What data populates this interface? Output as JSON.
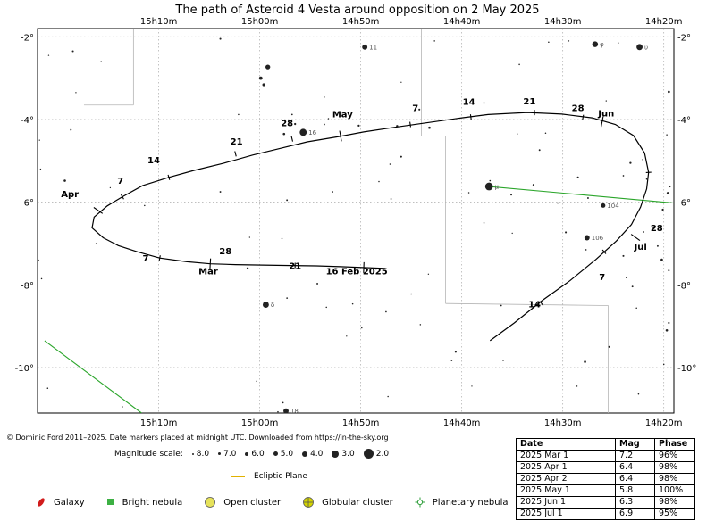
{
  "chart_data": {
    "type": "scatter",
    "title": "The path of Asteroid 4 Vesta around opposition on 2 May 2025",
    "x_axis": {
      "ticks": [
        "15h10m",
        "15h00m",
        "14h50m",
        "14h40m",
        "14h30m",
        "14h20m"
      ],
      "tick_values_min": [
        910,
        900,
        890,
        880,
        870,
        860
      ],
      "range_min": [
        922,
        859
      ]
    },
    "y_axis": {
      "ticks": [
        "-2°",
        "-4°",
        "-6°",
        "-8°",
        "-10°"
      ],
      "tick_values": [
        -2,
        -4,
        -6,
        -8,
        -10
      ],
      "range": [
        -11.1,
        -1.8
      ]
    },
    "grid": true,
    "path": [
      [
        887.6,
        -7.6
      ],
      [
        889.8,
        -7.58
      ],
      [
        892.0,
        -7.56
      ],
      [
        894.4,
        -7.54
      ],
      [
        896.9,
        -7.53
      ],
      [
        899.7,
        -7.52
      ],
      [
        902.4,
        -7.51
      ],
      [
        904.9,
        -7.49
      ],
      [
        907.2,
        -7.44
      ],
      [
        909.9,
        -7.35
      ],
      [
        912.1,
        -7.2
      ],
      [
        914.0,
        -7.05
      ],
      [
        915.5,
        -6.86
      ],
      [
        916.6,
        -6.62
      ],
      [
        916.4,
        -6.36
      ],
      [
        915.1,
        -6.09
      ],
      [
        913.6,
        -5.87
      ],
      [
        911.6,
        -5.6
      ],
      [
        909.0,
        -5.4
      ],
      [
        906.5,
        -5.23
      ],
      [
        903.6,
        -5.06
      ],
      [
        900.7,
        -4.86
      ],
      [
        898.0,
        -4.7
      ],
      [
        895.3,
        -4.54
      ],
      [
        892.3,
        -4.42
      ],
      [
        889.7,
        -4.3
      ],
      [
        886.7,
        -4.19
      ],
      [
        883.5,
        -4.08
      ],
      [
        880.0,
        -3.96
      ],
      [
        877.4,
        -3.88
      ],
      [
        873.5,
        -3.83
      ],
      [
        870.1,
        -3.87
      ],
      [
        867.1,
        -3.96
      ],
      [
        864.8,
        -4.12
      ],
      [
        863.0,
        -4.39
      ],
      [
        861.9,
        -4.81
      ],
      [
        861.5,
        -5.28
      ],
      [
        861.7,
        -5.68
      ],
      [
        862.3,
        -6.12
      ],
      [
        863.2,
        -6.54
      ],
      [
        864.7,
        -6.94
      ],
      [
        866.7,
        -7.38
      ],
      [
        869.3,
        -7.9
      ],
      [
        872.0,
        -8.37
      ],
      [
        874.8,
        -8.92
      ],
      [
        877.2,
        -9.35
      ]
    ],
    "date_labels": [
      {
        "text": "16 Feb 2025",
        "ra": 890.4,
        "dec": -7.75
      },
      {
        "text": "21",
        "ra": 896.5,
        "dec": -7.62
      },
      {
        "text": "28",
        "ra": 903.4,
        "dec": -7.26
      },
      {
        "text": "Mar",
        "ra": 905.1,
        "dec": -7.75
      },
      {
        "text": "7",
        "ra": 911.3,
        "dec": -7.43
      },
      {
        "text": "Apr",
        "ra": 918.8,
        "dec": -5.88
      },
      {
        "text": "7",
        "ra": 913.8,
        "dec": -5.55
      },
      {
        "text": "14",
        "ra": 910.5,
        "dec": -5.06
      },
      {
        "text": "21",
        "ra": 902.3,
        "dec": -4.6
      },
      {
        "text": "28",
        "ra": 897.3,
        "dec": -4.16
      },
      {
        "text": "May",
        "ra": 891.8,
        "dec": -3.95
      },
      {
        "text": "7",
        "ra": 884.6,
        "dec": -3.8
      },
      {
        "text": "14",
        "ra": 879.3,
        "dec": -3.65
      },
      {
        "text": "21",
        "ra": 873.3,
        "dec": -3.63
      },
      {
        "text": "28",
        "ra": 868.5,
        "dec": -3.8
      },
      {
        "text": "Jun",
        "ra": 865.7,
        "dec": -3.93
      },
      {
        "text": "28",
        "ra": 860.7,
        "dec": -6.7
      },
      {
        "text": "Jul",
        "ra": 862.3,
        "dec": -7.15
      },
      {
        "text": "7",
        "ra": 866.1,
        "dec": -7.88
      },
      {
        "text": "14",
        "ra": 872.8,
        "dec": -8.54
      }
    ],
    "ticks_on_path": [
      {
        "ra": 889.7,
        "dec": -7.58,
        "major": true
      },
      {
        "ra": 904.9,
        "dec": -7.49,
        "major": true
      },
      {
        "ra": 916.0,
        "dec": -6.2,
        "major": true
      },
      {
        "ra": 892.0,
        "dec": -4.4,
        "major": true
      },
      {
        "ra": 866.1,
        "dec": -4.05,
        "major": true
      },
      {
        "ra": 862.8,
        "dec": -6.85,
        "major": true
      },
      {
        "ra": 896.5,
        "dec": -7.53,
        "major": false
      },
      {
        "ra": 909.9,
        "dec": -7.35,
        "major": false
      },
      {
        "ra": 913.6,
        "dec": -5.87,
        "major": false
      },
      {
        "ra": 909.0,
        "dec": -5.4,
        "major": false
      },
      {
        "ra": 902.4,
        "dec": -4.83,
        "major": false
      },
      {
        "ra": 896.8,
        "dec": -4.47,
        "major": false
      },
      {
        "ra": 885.1,
        "dec": -4.12,
        "major": false
      },
      {
        "ra": 879.1,
        "dec": -3.94,
        "major": false
      },
      {
        "ra": 872.8,
        "dec": -3.83,
        "major": false
      },
      {
        "ra": 868.0,
        "dec": -3.95,
        "major": false
      },
      {
        "ra": 861.5,
        "dec": -5.28,
        "major": false
      },
      {
        "ra": 865.9,
        "dec": -7.2,
        "major": false
      },
      {
        "ra": 872.1,
        "dec": -8.45,
        "major": false
      }
    ],
    "ecliptic": [
      {
        "segment": [
          [
            877.3,
            -5.62
          ],
          [
            859.0,
            -6.02
          ]
        ]
      },
      {
        "segment": [
          [
            921.3,
            -9.35
          ],
          [
            911.7,
            -11.1
          ]
        ]
      }
    ],
    "labelled_stars": [
      {
        "name": "11",
        "ra": 889.6,
        "dec": -2.25,
        "mag": 5.5
      },
      {
        "name": "φ",
        "ra": 866.8,
        "dec": -2.18,
        "mag": 5.2
      },
      {
        "name": "υ",
        "ra": 862.4,
        "dec": -2.25,
        "mag": 5.0
      },
      {
        "name": "16",
        "ra": 895.7,
        "dec": -4.31,
        "mag": 4.5
      },
      {
        "name": "μ",
        "ra": 877.3,
        "dec": -5.62,
        "mag": 4.0
      },
      {
        "name": "104",
        "ra": 866.0,
        "dec": -6.08,
        "mag": 6.0
      },
      {
        "name": "106",
        "ra": 867.6,
        "dec": -6.86,
        "mag": 5.5
      },
      {
        "name": "δ",
        "ra": 899.4,
        "dec": -8.48,
        "mag": 5.0
      },
      {
        "name": "18",
        "ra": 897.4,
        "dec": -11.05,
        "mag": 5.5
      }
    ],
    "bright_objects": [
      {
        "ra": 921.3,
        "dec": -9.35,
        "mag": 3.0
      },
      {
        "ra": 859.0,
        "dec": -6.02,
        "mag": 3.5
      }
    ],
    "field_stars": [
      [
        918.5,
        -2.35,
        7.5
      ],
      [
        915.7,
        -2.6,
        7.8
      ],
      [
        903.9,
        -2.05,
        7.5
      ],
      [
        899.2,
        -2.73,
        5.8
      ],
      [
        899.9,
        -3.0,
        6.6
      ],
      [
        899.6,
        -3.16,
        6.9
      ],
      [
        902.1,
        -3.88,
        7.8
      ],
      [
        918.2,
        -3.35,
        7.9
      ],
      [
        920.9,
        -2.45,
        7.9
      ],
      [
        921.8,
        -4.5,
        7.9
      ],
      [
        918.7,
        -4.25,
        7.6
      ],
      [
        919.3,
        -5.48,
        7.2
      ],
      [
        921.7,
        -5.2,
        7.9
      ],
      [
        914.8,
        -5.65,
        7.9
      ],
      [
        903.9,
        -5.75,
        7.6
      ],
      [
        897.3,
        -5.95,
        7.6
      ],
      [
        892.8,
        -5.75,
        7.6
      ],
      [
        887.0,
        -5.92,
        7.7
      ],
      [
        888.2,
        -5.5,
        7.8
      ],
      [
        887.1,
        -5.08,
        7.8
      ],
      [
        886.0,
        -4.9,
        7.5
      ],
      [
        893.2,
        -3.98,
        7.8
      ],
      [
        893.6,
        -4.12,
        7.7
      ],
      [
        896.5,
        -4.11,
        7.4
      ],
      [
        896.8,
        -3.88,
        7.7
      ],
      [
        897.6,
        -4.35,
        7.2
      ],
      [
        890.2,
        -4.15,
        7.4
      ],
      [
        886.4,
        -4.16,
        7.3
      ],
      [
        883.2,
        -4.2,
        7.2
      ],
      [
        877.8,
        -3.6,
        7.6
      ],
      [
        879.3,
        -5.77,
        7.8
      ],
      [
        877.2,
        -5.48,
        7.7
      ],
      [
        875.1,
        -5.82,
        7.6
      ],
      [
        872.3,
        -4.74,
        7.6
      ],
      [
        872.9,
        -5.58,
        7.5
      ],
      [
        868.5,
        -5.4,
        7.5
      ],
      [
        867.5,
        -5.9,
        7.6
      ],
      [
        870.5,
        -6.02,
        7.7
      ],
      [
        869.7,
        -6.73,
        7.5
      ],
      [
        867.7,
        -7.15,
        7.8
      ],
      [
        864.0,
        -7.3,
        7.5
      ],
      [
        860.2,
        -7.39,
        7.2
      ],
      [
        859.5,
        -7.65,
        7.6
      ],
      [
        861.0,
        -6.62,
        7.4
      ],
      [
        862.0,
        -6.72,
        7.7
      ],
      [
        860.1,
        -6.18,
        7.4
      ],
      [
        859.6,
        -5.78,
        7.2
      ],
      [
        859.4,
        -5.62,
        7.5
      ],
      [
        861.7,
        -5.44,
        7.8
      ],
      [
        864.0,
        -5.36,
        7.7
      ],
      [
        863.3,
        -5.05,
        7.4
      ],
      [
        859.5,
        -3.33,
        7.2
      ],
      [
        859.7,
        -4.37,
        7.8
      ],
      [
        862.1,
        -4.97,
        7.9
      ],
      [
        871.7,
        -4.33,
        7.8
      ],
      [
        874.5,
        -4.35,
        7.9
      ],
      [
        884.2,
        -3.76,
        7.5
      ],
      [
        886.0,
        -3.1,
        7.9
      ],
      [
        882.7,
        -2.1,
        7.8
      ],
      [
        874.3,
        -2.67,
        7.8
      ],
      [
        871.4,
        -2.13,
        7.8
      ],
      [
        864.5,
        -2.15,
        7.9
      ],
      [
        893.6,
        -3.46,
        7.9
      ],
      [
        897.8,
        -6.88,
        7.8
      ],
      [
        901.2,
        -7.6,
        7.4
      ],
      [
        894.3,
        -7.97,
        7.6
      ],
      [
        897.3,
        -8.32,
        7.7
      ],
      [
        893.4,
        -8.54,
        7.8
      ],
      [
        890.8,
        -8.46,
        7.8
      ],
      [
        887.5,
        -8.65,
        7.7
      ],
      [
        885.0,
        -8.22,
        7.8
      ],
      [
        884.1,
        -8.96,
        7.8
      ],
      [
        883.3,
        -7.74,
        7.9
      ],
      [
        889.9,
        -9.04,
        7.8
      ],
      [
        891.4,
        -9.24,
        7.9
      ],
      [
        880.6,
        -9.62,
        7.5
      ],
      [
        881.0,
        -9.83,
        7.8
      ],
      [
        876.3,
        -9.2,
        7.8
      ],
      [
        876.1,
        -8.5,
        7.7
      ],
      [
        875.9,
        -9.83,
        7.9
      ],
      [
        867.8,
        -9.86,
        7.2
      ],
      [
        868.6,
        -10.45,
        7.8
      ],
      [
        865.4,
        -9.5,
        7.5
      ],
      [
        862.5,
        -10.64,
        7.8
      ],
      [
        860.0,
        -9.92,
        7.8
      ],
      [
        859.7,
        -9.1,
        7.2
      ],
      [
        859.5,
        -8.92,
        7.5
      ],
      [
        863.1,
        -8.04,
        7.6
      ],
      [
        863.7,
        -7.82,
        7.6
      ],
      [
        860.6,
        -7.06,
        7.6
      ],
      [
        862.7,
        -8.56,
        7.8
      ],
      [
        887.3,
        -10.7,
        7.8
      ],
      [
        879.0,
        -10.45,
        7.9
      ],
      [
        900.3,
        -10.33,
        7.8
      ],
      [
        897.7,
        -10.85,
        7.7
      ],
      [
        898.2,
        -11.07,
        7.8
      ],
      [
        913.6,
        -10.95,
        7.8
      ],
      [
        921.0,
        -10.5,
        7.8
      ],
      [
        921.6,
        -7.85,
        7.8
      ],
      [
        921.9,
        -7.4,
        7.9
      ],
      [
        916.2,
        -7.0,
        7.9
      ],
      [
        901.0,
        -6.85,
        7.9
      ],
      [
        911.4,
        -6.08,
        7.8
      ],
      [
        877.8,
        -6.5,
        7.8
      ],
      [
        875.0,
        -6.75,
        7.9
      ],
      [
        869.4,
        -2.1,
        7.9
      ],
      [
        865.7,
        -3.55,
        7.9
      ]
    ],
    "constellation_boundaries": [
      [
        [
          912.5,
          -1.8
        ],
        [
          912.5,
          -3.65
        ]
      ],
      [
        [
          917.4,
          -3.65
        ],
        [
          912.5,
          -3.65
        ]
      ],
      [
        [
          884.0,
          -1.8
        ],
        [
          884.0,
          -4.4
        ]
      ],
      [
        [
          884.0,
          -4.4
        ],
        [
          881.6,
          -4.4
        ]
      ],
      [
        [
          881.6,
          -4.4
        ],
        [
          881.6,
          -8.45
        ]
      ],
      [
        [
          881.6,
          -8.45
        ],
        [
          865.5,
          -8.5
        ]
      ],
      [
        [
          865.5,
          -8.5
        ],
        [
          865.5,
          -11.1
        ]
      ]
    ]
  },
  "credit": "© Dominic Ford 2011–2025. Date markers placed at midnight UTC. Downloaded from https://in-the-sky.org",
  "magnitude_scale": {
    "label": "Magnitude scale:",
    "items": [
      "8.0",
      "7.0",
      "6.0",
      "5.0",
      "4.0",
      "3.0",
      "2.0"
    ]
  },
  "ecliptic_label": "Ecliptic Plane",
  "legend": {
    "galaxy": "Galaxy",
    "bright_nebula": "Bright nebula",
    "open_cluster": "Open cluster",
    "globular_cluster": "Globular cluster",
    "planetary_nebula": "Planetary nebula"
  },
  "table": {
    "headers": [
      "Date",
      "Mag",
      "Phase"
    ],
    "rows": [
      [
        "2025 Mar 1",
        "7.2",
        "96%"
      ],
      [
        "2025 Apr 1",
        "6.4",
        "98%"
      ],
      [
        "2025 Apr 2",
        "6.4",
        "98%"
      ],
      [
        "2025 May 1",
        "5.8",
        "100%"
      ],
      [
        "2025 Jun 1",
        "6.3",
        "98%"
      ],
      [
        "2025 Jul 1",
        "6.9",
        "95%"
      ]
    ]
  },
  "colors": {
    "path": "#000000",
    "ecliptic": "#2aa52a",
    "ecliptic_key": "#e1b100",
    "grid": "#aaaaaa",
    "boundary": "#b5b5b5",
    "galaxy": "#d11b1b",
    "bright_nebula": "#3cb043",
    "open_cluster": "#e6e25a",
    "globular_cluster": "#d4d400",
    "planetary_nebula": "#2e9e3a"
  }
}
